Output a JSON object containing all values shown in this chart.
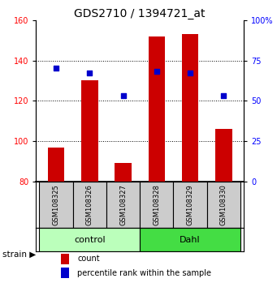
{
  "title": "GDS2710 / 1394721_at",
  "samples": [
    "GSM108325",
    "GSM108326",
    "GSM108327",
    "GSM108328",
    "GSM108329",
    "GSM108330"
  ],
  "counts": [
    97,
    130,
    89,
    152,
    153,
    106
  ],
  "percentiles": [
    70,
    67,
    53,
    68,
    67,
    53
  ],
  "ylim_left": [
    80,
    160
  ],
  "ylim_right": [
    0,
    100
  ],
  "yticks_left": [
    80,
    100,
    120,
    140,
    160
  ],
  "yticks_right": [
    0,
    25,
    50,
    75,
    100
  ],
  "ytick_labels_right": [
    "0",
    "25",
    "50",
    "75",
    "100%"
  ],
  "bar_color": "#cc0000",
  "dot_color": "#0000cc",
  "bar_width": 0.5,
  "dot_size": 25,
  "groups": [
    {
      "label": "control",
      "color": "#bbffbb",
      "n": 3
    },
    {
      "label": "Dahl",
      "color": "#44dd44",
      "n": 3
    }
  ],
  "group_row_color": "#cccccc",
  "legend_count_color": "#cc0000",
  "legend_pct_color": "#0000cc",
  "title_fontsize": 10,
  "tick_fontsize": 7,
  "sample_fontsize": 6,
  "group_fontsize": 8,
  "legend_fontsize": 7,
  "strain_text": "strain",
  "legend_count_label": "count",
  "legend_pct_label": "percentile rank within the sample"
}
